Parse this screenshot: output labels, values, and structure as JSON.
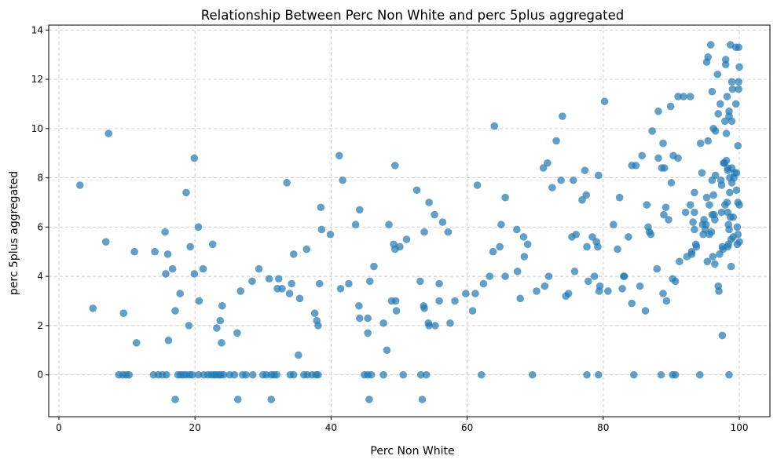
{
  "chart_data": {
    "type": "scatter",
    "title": "Relationship Between Perc Non White and perc 5plus aggregated",
    "xlabel": "Perc Non White",
    "ylabel": "perc 5plus aggregated",
    "xlim": [
      -1.5,
      104.5
    ],
    "ylim": [
      -1.7,
      14.2
    ],
    "xticks": [
      0,
      20,
      40,
      60,
      80,
      100
    ],
    "yticks": [
      0,
      2,
      4,
      6,
      8,
      10,
      12,
      14
    ],
    "grid": true,
    "color": "#1f77b4",
    "points": [
      [
        3.1,
        7.7
      ],
      [
        5.0,
        2.7
      ],
      [
        6.9,
        5.4
      ],
      [
        7.3,
        9.8
      ],
      [
        9.5,
        2.5
      ],
      [
        11.1,
        5.0
      ],
      [
        11.4,
        1.3
      ],
      [
        14.1,
        5.0
      ],
      [
        15.6,
        5.8
      ],
      [
        15.7,
        4.1
      ],
      [
        16.0,
        4.9
      ],
      [
        16.1,
        1.4
      ],
      [
        16.7,
        4.3
      ],
      [
        17.1,
        2.6
      ],
      [
        17.8,
        3.3
      ],
      [
        18.7,
        7.4
      ],
      [
        19.1,
        2.0
      ],
      [
        19.3,
        5.2
      ],
      [
        19.9,
        4.1
      ],
      [
        19.9,
        8.8
      ],
      [
        20.5,
        6.0
      ],
      [
        20.6,
        3.0
      ],
      [
        21.2,
        4.3
      ],
      [
        22.6,
        5.3
      ],
      [
        23.2,
        1.9
      ],
      [
        23.7,
        2.2
      ],
      [
        23.9,
        1.3
      ],
      [
        24.0,
        2.8
      ],
      [
        26.2,
        1.7
      ],
      [
        26.7,
        3.4
      ],
      [
        28.4,
        3.8
      ],
      [
        29.4,
        4.3
      ],
      [
        30.9,
        3.9
      ],
      [
        32.1,
        3.5
      ],
      [
        32.3,
        3.9
      ],
      [
        32.8,
        3.5
      ],
      [
        33.5,
        7.8
      ],
      [
        33.9,
        3.3
      ],
      [
        34.2,
        3.7
      ],
      [
        34.5,
        4.9
      ],
      [
        35.2,
        0.8
      ],
      [
        35.4,
        3.1
      ],
      [
        36.4,
        5.1
      ],
      [
        37.6,
        2.5
      ],
      [
        37.9,
        2.2
      ],
      [
        38.1,
        2.0
      ],
      [
        38.3,
        3.7
      ],
      [
        38.5,
        6.8
      ],
      [
        38.6,
        5.9
      ],
      [
        39.9,
        5.7
      ],
      [
        41.2,
        8.9
      ],
      [
        41.4,
        3.5
      ],
      [
        41.7,
        7.9
      ],
      [
        42.6,
        3.7
      ],
      [
        43.6,
        6.1
      ],
      [
        44.1,
        2.8
      ],
      [
        44.2,
        2.3
      ],
      [
        44.2,
        6.7
      ],
      [
        45.4,
        1.7
      ],
      [
        45.4,
        2.3
      ],
      [
        45.7,
        3.8
      ],
      [
        46.3,
        4.4
      ],
      [
        47.7,
        2.1
      ],
      [
        48.2,
        1.0
      ],
      [
        48.5,
        6.1
      ],
      [
        48.9,
        3.0
      ],
      [
        49.2,
        5.3
      ],
      [
        49.4,
        5.1
      ],
      [
        49.4,
        8.5
      ],
      [
        49.5,
        3.0
      ],
      [
        49.6,
        2.6
      ],
      [
        50.1,
        5.2
      ],
      [
        51.1,
        5.5
      ],
      [
        52.6,
        7.5
      ],
      [
        53.1,
        3.8
      ],
      [
        53.6,
        2.8
      ],
      [
        53.7,
        2.7
      ],
      [
        53.7,
        5.8
      ],
      [
        54.3,
        2.1
      ],
      [
        54.4,
        2.0
      ],
      [
        54.4,
        7.0
      ],
      [
        55.2,
        6.5
      ],
      [
        55.3,
        2.0
      ],
      [
        55.9,
        3.7
      ],
      [
        55.9,
        3.0
      ],
      [
        56.4,
        6.2
      ],
      [
        57.2,
        5.8
      ],
      [
        57.5,
        2.1
      ],
      [
        58.2,
        3.0
      ],
      [
        59.8,
        3.3
      ],
      [
        60.8,
        2.6
      ],
      [
        61.2,
        3.3
      ],
      [
        61.5,
        7.7
      ],
      [
        62.4,
        3.7
      ],
      [
        63.3,
        4.0
      ],
      [
        63.8,
        5.0
      ],
      [
        64.0,
        10.1
      ],
      [
        64.8,
        5.2
      ],
      [
        65.0,
        6.1
      ],
      [
        65.6,
        4.0
      ],
      [
        65.6,
        7.2
      ],
      [
        67.3,
        5.9
      ],
      [
        67.4,
        4.2
      ],
      [
        67.8,
        3.1
      ],
      [
        68.3,
        5.6
      ],
      [
        68.4,
        4.8
      ],
      [
        68.9,
        5.3
      ],
      [
        70.2,
        3.4
      ],
      [
        71.2,
        8.4
      ],
      [
        71.4,
        3.6
      ],
      [
        71.8,
        8.6
      ],
      [
        72.0,
        4.0
      ],
      [
        72.5,
        7.6
      ],
      [
        73.1,
        9.5
      ],
      [
        73.8,
        7.9
      ],
      [
        74.0,
        10.5
      ],
      [
        74.5,
        3.2
      ],
      [
        74.9,
        3.3
      ],
      [
        75.4,
        5.6
      ],
      [
        75.6,
        7.9
      ],
      [
        75.8,
        4.2
      ],
      [
        76.0,
        5.7
      ],
      [
        76.9,
        7.1
      ],
      [
        77.3,
        8.3
      ],
      [
        77.5,
        7.3
      ],
      [
        77.6,
        5.2
      ],
      [
        77.8,
        3.8
      ],
      [
        78.4,
        5.6
      ],
      [
        78.7,
        4.0
      ],
      [
        79.0,
        5.4
      ],
      [
        79.2,
        5.2
      ],
      [
        79.3,
        8.1
      ],
      [
        79.4,
        3.4
      ],
      [
        79.5,
        3.6
      ],
      [
        80.2,
        11.1
      ],
      [
        80.7,
        3.4
      ],
      [
        81.5,
        6.1
      ],
      [
        82.1,
        5.1
      ],
      [
        82.4,
        7.2
      ],
      [
        82.8,
        3.5
      ],
      [
        83.0,
        4.0
      ],
      [
        83.1,
        4.0
      ],
      [
        83.7,
        5.6
      ],
      [
        84.2,
        2.9
      ],
      [
        84.2,
        8.5
      ],
      [
        84.8,
        8.5
      ],
      [
        85.4,
        3.6
      ],
      [
        85.7,
        8.9
      ],
      [
        86.2,
        2.6
      ],
      [
        86.4,
        6.9
      ],
      [
        86.6,
        6.0
      ],
      [
        86.8,
        5.8
      ],
      [
        87.0,
        5.7
      ],
      [
        87.2,
        9.9
      ],
      [
        87.9,
        4.3
      ],
      [
        88.1,
        8.8
      ],
      [
        88.1,
        10.7
      ],
      [
        88.6,
        8.4
      ],
      [
        88.8,
        3.3
      ],
      [
        88.8,
        9.4
      ],
      [
        88.9,
        6.5
      ],
      [
        89.0,
        8.4
      ],
      [
        89.2,
        6.8
      ],
      [
        89.3,
        3.0
      ],
      [
        89.6,
        6.3
      ],
      [
        89.9,
        10.9
      ],
      [
        90.0,
        7.8
      ],
      [
        90.2,
        3.9
      ],
      [
        90.3,
        8.9
      ],
      [
        90.6,
        3.8
      ],
      [
        91.0,
        8.8
      ],
      [
        91.0,
        11.3
      ],
      [
        91.2,
        4.6
      ],
      [
        91.8,
        11.3
      ],
      [
        92.1,
        6.6
      ],
      [
        92.3,
        4.8
      ],
      [
        92.8,
        6.9
      ],
      [
        92.8,
        11.3
      ],
      [
        93.0,
        5.0
      ],
      [
        93.0,
        4.9
      ],
      [
        93.2,
        6.2
      ],
      [
        93.4,
        6.6
      ],
      [
        93.4,
        7.4
      ],
      [
        93.4,
        5.9
      ],
      [
        93.6,
        5.3
      ],
      [
        93.7,
        5.2
      ],
      [
        94.3,
        9.4
      ],
      [
        94.5,
        8.2
      ],
      [
        94.6,
        6.1
      ],
      [
        94.7,
        5.7
      ],
      [
        94.8,
        6.3
      ],
      [
        95.0,
        5.9
      ],
      [
        95.1,
        6.1
      ],
      [
        95.2,
        7.2
      ],
      [
        95.2,
        12.7
      ],
      [
        95.3,
        4.6
      ],
      [
        95.4,
        9.5
      ],
      [
        95.4,
        12.9
      ],
      [
        95.6,
        6.9
      ],
      [
        95.6,
        5.7
      ],
      [
        95.8,
        13.4
      ],
      [
        95.9,
        5.8
      ],
      [
        96.0,
        6.5
      ],
      [
        96.0,
        7.9
      ],
      [
        96.0,
        11.5
      ],
      [
        96.1,
        4.8
      ],
      [
        96.2,
        7.3
      ],
      [
        96.2,
        10.0
      ],
      [
        96.3,
        6.5
      ],
      [
        96.4,
        6.3
      ],
      [
        96.4,
        4.5
      ],
      [
        96.5,
        8.1
      ],
      [
        96.5,
        9.9
      ],
      [
        96.8,
        12.2
      ],
      [
        96.9,
        3.6
      ],
      [
        96.9,
        10.6
      ],
      [
        97.0,
        3.4
      ],
      [
        97.1,
        4.9
      ],
      [
        97.2,
        11.0
      ],
      [
        97.3,
        7.9
      ],
      [
        97.4,
        6.6
      ],
      [
        97.4,
        7.7
      ],
      [
        97.5,
        5.2
      ],
      [
        97.5,
        1.6
      ],
      [
        97.6,
        5.1
      ],
      [
        97.7,
        8.6
      ],
      [
        97.8,
        8.6
      ],
      [
        97.9,
        10.3
      ],
      [
        97.9,
        6.9
      ],
      [
        98.0,
        12.8
      ],
      [
        98.0,
        12.6
      ],
      [
        98.1,
        9.8
      ],
      [
        98.1,
        8.7
      ],
      [
        98.2,
        7.0
      ],
      [
        98.2,
        11.3
      ],
      [
        98.3,
        5.2
      ],
      [
        98.3,
        6.6
      ],
      [
        98.3,
        8.3
      ],
      [
        98.3,
        8.4
      ],
      [
        98.4,
        6.1
      ],
      [
        98.4,
        5.3
      ],
      [
        98.5,
        10.7
      ],
      [
        98.5,
        10.5
      ],
      [
        98.5,
        5.9
      ],
      [
        98.6,
        7.4
      ],
      [
        98.6,
        8.0
      ],
      [
        98.7,
        6.4
      ],
      [
        98.7,
        13.4
      ],
      [
        98.8,
        5.5
      ],
      [
        98.8,
        4.4
      ],
      [
        98.9,
        8.4
      ],
      [
        98.9,
        7.8
      ],
      [
        98.9,
        11.9
      ],
      [
        98.9,
        10.3
      ],
      [
        99.0,
        11.6
      ],
      [
        99.1,
        5.6
      ],
      [
        99.1,
        6.4
      ],
      [
        99.2,
        8.0
      ],
      [
        99.3,
        8.2
      ],
      [
        99.5,
        11.0
      ],
      [
        99.5,
        13.3
      ],
      [
        99.6,
        8.2
      ],
      [
        99.6,
        7.5
      ],
      [
        99.7,
        6.0
      ],
      [
        99.7,
        5.3
      ],
      [
        99.8,
        9.3
      ],
      [
        99.8,
        5.7
      ],
      [
        99.8,
        7.0
      ],
      [
        99.9,
        11.6
      ],
      [
        99.9,
        11.9
      ],
      [
        99.9,
        13.3
      ],
      [
        100.0,
        6.9
      ],
      [
        100.0,
        12.5
      ],
      [
        100.0,
        5.4
      ],
      [
        8.8,
        0
      ],
      [
        9.4,
        0
      ],
      [
        9.9,
        0
      ],
      [
        10.3,
        0
      ],
      [
        13.9,
        0
      ],
      [
        14.6,
        0
      ],
      [
        15.2,
        0
      ],
      [
        15.8,
        0
      ],
      [
        17.5,
        0
      ],
      [
        17.9,
        0
      ],
      [
        18.3,
        0
      ],
      [
        18.7,
        0
      ],
      [
        19.2,
        0
      ],
      [
        19.6,
        0
      ],
      [
        20.5,
        0
      ],
      [
        21.3,
        0
      ],
      [
        21.9,
        0
      ],
      [
        22.4,
        0
      ],
      [
        22.8,
        0
      ],
      [
        23.1,
        0
      ],
      [
        23.5,
        0
      ],
      [
        23.8,
        0
      ],
      [
        24.2,
        0
      ],
      [
        25.1,
        0
      ],
      [
        25.8,
        0
      ],
      [
        27.0,
        0
      ],
      [
        27.5,
        0
      ],
      [
        28.5,
        0
      ],
      [
        30.0,
        0
      ],
      [
        30.5,
        0
      ],
      [
        31.2,
        0
      ],
      [
        31.6,
        0
      ],
      [
        32.0,
        0
      ],
      [
        34.0,
        0
      ],
      [
        34.5,
        0
      ],
      [
        36.0,
        0
      ],
      [
        36.5,
        0
      ],
      [
        37.2,
        0
      ],
      [
        37.8,
        0
      ],
      [
        38.1,
        0
      ],
      [
        44.9,
        0
      ],
      [
        45.4,
        0
      ],
      [
        45.9,
        0
      ],
      [
        47.7,
        0
      ],
      [
        50.6,
        0
      ],
      [
        53.2,
        0
      ],
      [
        54.0,
        0
      ],
      [
        62.1,
        0
      ],
      [
        69.6,
        0
      ],
      [
        77.6,
        0
      ],
      [
        79.3,
        0
      ],
      [
        84.5,
        0
      ],
      [
        88.5,
        0
      ],
      [
        90.2,
        0
      ],
      [
        90.6,
        0
      ],
      [
        94.2,
        0
      ],
      [
        98.5,
        0
      ],
      [
        17.1,
        -1
      ],
      [
        26.3,
        -1
      ],
      [
        31.2,
        -1
      ],
      [
        45.6,
        -1
      ],
      [
        53.4,
        -1
      ]
    ]
  }
}
